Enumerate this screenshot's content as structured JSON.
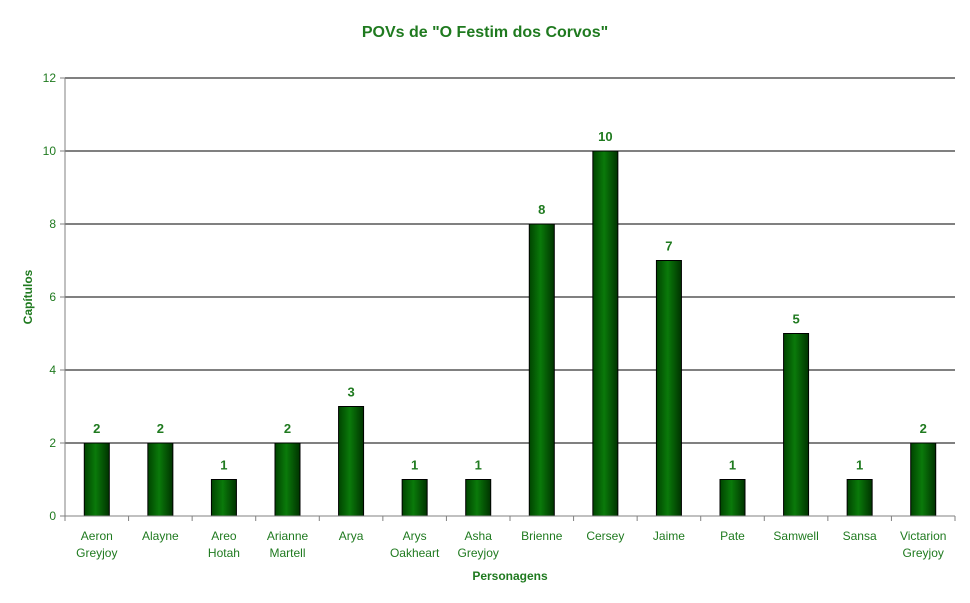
{
  "chart_data": {
    "type": "bar",
    "title": "POVs de \"O Festim dos Corvos\"",
    "xlabel": "Personagens",
    "ylabel": "Capítulos",
    "ylim": [
      0,
      12
    ],
    "yticks": [
      0,
      2,
      4,
      6,
      8,
      10,
      12
    ],
    "grid": true,
    "categories": [
      [
        "Aeron",
        "Greyjoy"
      ],
      [
        "Alayne"
      ],
      [
        "Areo",
        "Hotah"
      ],
      [
        "Arianne",
        "Martell"
      ],
      [
        "Arya"
      ],
      [
        "Arys",
        "Oakheart"
      ],
      [
        "Asha",
        "Greyjoy"
      ],
      [
        "Brienne"
      ],
      [
        "Cersey"
      ],
      [
        "Jaime"
      ],
      [
        "Pate"
      ],
      [
        "Samwell"
      ],
      [
        "Sansa"
      ],
      [
        "Victarion",
        "Greyjoy"
      ]
    ],
    "values": [
      2,
      2,
      1,
      2,
      3,
      1,
      1,
      8,
      10,
      7,
      1,
      5,
      1,
      2
    ],
    "colors": {
      "bar_dark": "#004400",
      "bar_mid": "#0a7a0a",
      "bar_light": "#2a9a2a",
      "text": "#1f7a1f",
      "grid": "#000000",
      "axis": "#808080"
    }
  }
}
